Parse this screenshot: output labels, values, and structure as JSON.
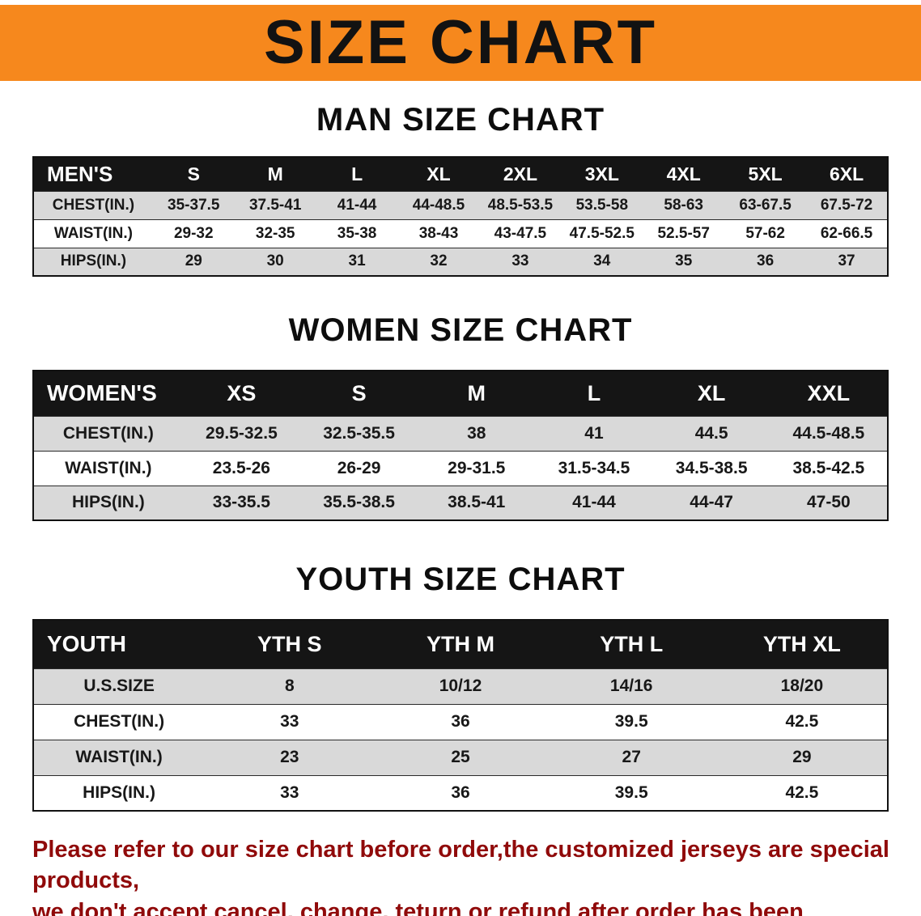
{
  "banner": {
    "title": "SIZE CHART"
  },
  "colors": {
    "banner_bg": "#F6881D",
    "table_header_bg": "#151515",
    "row_alt_bg": "#d9d9d9",
    "footer_text": "#900A0A"
  },
  "sections": [
    {
      "heading": "MAN SIZE CHART",
      "label": "MEN'S",
      "columns": [
        "S",
        "M",
        "L",
        "XL",
        "2XL",
        "3XL",
        "4XL",
        "5XL",
        "6XL"
      ],
      "rows": [
        {
          "label": "CHEST(IN.)",
          "values": [
            "35-37.5",
            "37.5-41",
            "41-44",
            "44-48.5",
            "48.5-53.5",
            "53.5-58",
            "58-63",
            "63-67.5",
            "67.5-72"
          ]
        },
        {
          "label": "WAIST(IN.)",
          "values": [
            "29-32",
            "32-35",
            "35-38",
            "38-43",
            "43-47.5",
            "47.5-52.5",
            "52.5-57",
            "57-62",
            "62-66.5"
          ]
        },
        {
          "label": "HIPS(IN.)",
          "values": [
            "29",
            "30",
            "31",
            "32",
            "33",
            "34",
            "35",
            "36",
            "37"
          ]
        }
      ]
    },
    {
      "heading": "WOMEN SIZE CHART",
      "label": "WOMEN'S",
      "columns": [
        "XS",
        "S",
        "M",
        "L",
        "XL",
        "XXL"
      ],
      "rows": [
        {
          "label": "CHEST(IN.)",
          "values": [
            "29.5-32.5",
            "32.5-35.5",
            "38",
            "41",
            "44.5",
            "44.5-48.5"
          ]
        },
        {
          "label": "WAIST(IN.)",
          "values": [
            "23.5-26",
            "26-29",
            "29-31.5",
            "31.5-34.5",
            "34.5-38.5",
            "38.5-42.5"
          ]
        },
        {
          "label": "HIPS(IN.)",
          "values": [
            "33-35.5",
            "35.5-38.5",
            "38.5-41",
            "41-44",
            "44-47",
            "47-50"
          ]
        }
      ]
    },
    {
      "heading": "YOUTH SIZE CHART",
      "label": "YOUTH",
      "columns": [
        "YTH S",
        "YTH M",
        "YTH L",
        "YTH XL"
      ],
      "rows": [
        {
          "label": "U.S.SIZE",
          "values": [
            "8",
            "10/12",
            "14/16",
            "18/20"
          ]
        },
        {
          "label": "CHEST(IN.)",
          "values": [
            "33",
            "36",
            "39.5",
            "42.5"
          ]
        },
        {
          "label": "WAIST(IN.)",
          "values": [
            "23",
            "25",
            "27",
            "29"
          ]
        },
        {
          "label": "HIPS(IN.)",
          "values": [
            "33",
            "36",
            "39.5",
            "42.5"
          ]
        }
      ]
    }
  ],
  "footer": {
    "line1": "Please refer to our size chart before order,the customized jerseys are special products,",
    "line2": "we don't accept cancel, change, teturn or refund after order has been placed!"
  }
}
